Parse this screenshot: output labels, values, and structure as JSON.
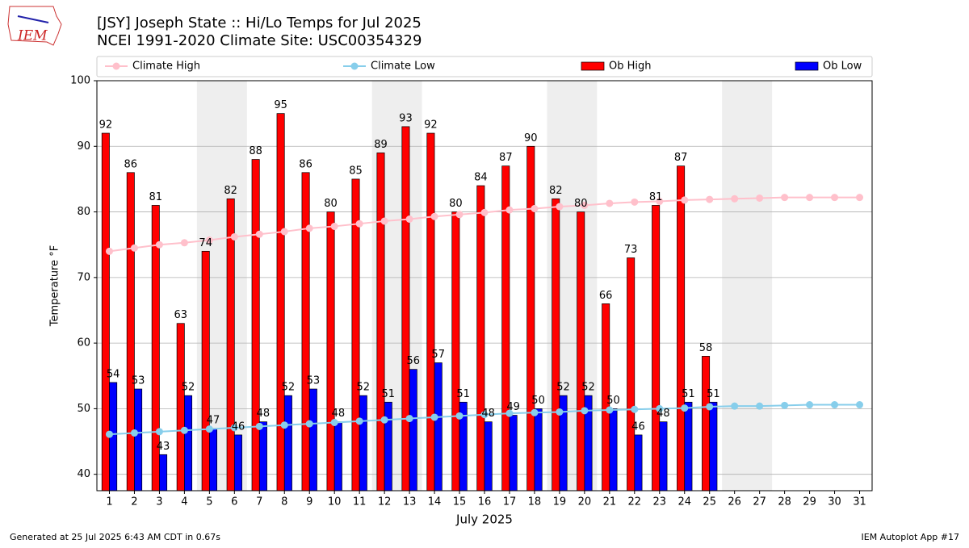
{
  "chart_data": {
    "type": "bar",
    "title": "[JSY] Joseph State :: Hi/Lo Temps for Jul 2025",
    "subtitle": "NCEI 1991-2020 Climate Site: USC00354329",
    "logo_text": "IEM",
    "x_label": "July 2025",
    "y_label": "Temperature °F",
    "footer_left": "Generated at 25 Jul 2025 6:43 AM CDT in 0.67s",
    "footer_right": "IEM Autoplot App #17",
    "x": [
      1,
      2,
      3,
      4,
      5,
      6,
      7,
      8,
      9,
      10,
      11,
      12,
      13,
      14,
      15,
      16,
      17,
      18,
      19,
      20,
      21,
      22,
      23,
      24,
      25,
      26,
      27,
      28,
      29,
      30,
      31
    ],
    "xlim": [
      0.5,
      31.5
    ],
    "ylim": [
      37.5,
      100
    ],
    "yticks": [
      40,
      50,
      60,
      70,
      80,
      90,
      100
    ],
    "grid": true,
    "weekend_spans": [
      [
        4.5,
        6.5
      ],
      [
        11.5,
        13.5
      ],
      [
        18.5,
        20.5
      ],
      [
        25.5,
        27.5
      ]
    ],
    "weekend_color": "#eeeeee",
    "series": [
      {
        "name": "Climate High",
        "type": "line",
        "color": "#ffc0cb",
        "values": [
          74.0,
          74.5,
          75.0,
          75.3,
          75.7,
          76.2,
          76.6,
          77.0,
          77.5,
          77.8,
          78.2,
          78.6,
          78.9,
          79.3,
          79.6,
          79.9,
          80.3,
          80.5,
          80.8,
          81.0,
          81.3,
          81.5,
          81.6,
          81.8,
          81.9,
          82.0,
          82.1,
          82.2,
          82.2,
          82.2,
          82.2
        ]
      },
      {
        "name": "Climate Low",
        "type": "line",
        "color": "#87ceeb",
        "values": [
          46.1,
          46.3,
          46.5,
          46.7,
          46.9,
          47.1,
          47.3,
          47.5,
          47.7,
          47.9,
          48.1,
          48.3,
          48.5,
          48.7,
          48.9,
          49.1,
          49.3,
          49.4,
          49.5,
          49.7,
          49.8,
          49.9,
          50.0,
          50.1,
          50.3,
          50.4,
          50.4,
          50.5,
          50.6,
          50.6,
          50.6
        ]
      },
      {
        "name": "Ob High",
        "type": "bar",
        "color": "#ff0000",
        "values": [
          92,
          86,
          81,
          63,
          74,
          82,
          88,
          95,
          86,
          80,
          85,
          89,
          93,
          92,
          80,
          84,
          87,
          90,
          82,
          80,
          66,
          73,
          81,
          87,
          58,
          null,
          null,
          null,
          null,
          null,
          null
        ]
      },
      {
        "name": "Ob Low",
        "type": "bar",
        "color": "#0000ff",
        "values": [
          54,
          53,
          43,
          52,
          47,
          46,
          48,
          52,
          53,
          48,
          52,
          51,
          56,
          57,
          51,
          48,
          49,
          50,
          52,
          52,
          50,
          46,
          48,
          51,
          51,
          null,
          null,
          null,
          null,
          null,
          null
        ]
      }
    ]
  }
}
